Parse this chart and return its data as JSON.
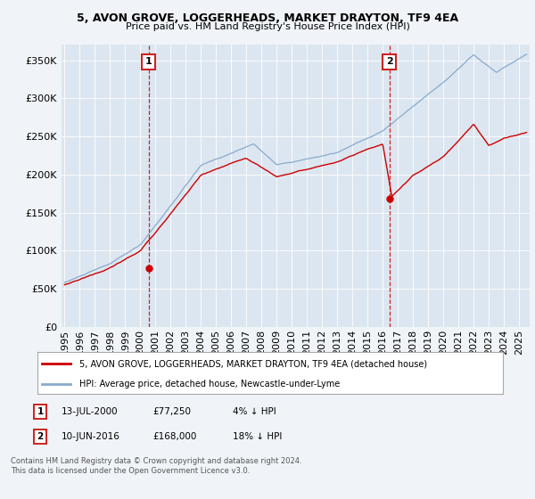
{
  "title": "5, AVON GROVE, LOGGERHEADS, MARKET DRAYTON, TF9 4EA",
  "subtitle": "Price paid vs. HM Land Registry's House Price Index (HPI)",
  "legend_line1": "5, AVON GROVE, LOGGERHEADS, MARKET DRAYTON, TF9 4EA (detached house)",
  "legend_line2": "HPI: Average price, detached house, Newcastle-under-Lyme",
  "annotation1_label": "1",
  "annotation1_date": "13-JUL-2000",
  "annotation1_price": "£77,250",
  "annotation1_hpi": "4% ↓ HPI",
  "annotation1_year": 2000.54,
  "annotation2_label": "2",
  "annotation2_date": "10-JUN-2016",
  "annotation2_price": "£168,000",
  "annotation2_hpi": "18% ↓ HPI",
  "annotation2_year": 2016.44,
  "footer1": "Contains HM Land Registry data © Crown copyright and database right 2024.",
  "footer2": "This data is licensed under the Open Government Licence v3.0.",
  "fig_bg_color": "#f0f4f8",
  "plot_bg_color": "#dce6f0",
  "red_line_color": "#cc0000",
  "blue_line_color": "#88aacc",
  "grid_color": "#ffffff",
  "ann_box_color": "#cc2222",
  "ylim": [
    0,
    370000
  ],
  "xlim_start": 1994.8,
  "xlim_end": 2025.7,
  "yticks": [
    0,
    50000,
    100000,
    150000,
    200000,
    250000,
    300000,
    350000
  ],
  "xticks": [
    1995,
    1996,
    1997,
    1998,
    1999,
    2000,
    2001,
    2002,
    2003,
    2004,
    2005,
    2006,
    2007,
    2008,
    2009,
    2010,
    2011,
    2012,
    2013,
    2014,
    2015,
    2016,
    2017,
    2018,
    2019,
    2020,
    2021,
    2022,
    2023,
    2024,
    2025
  ]
}
